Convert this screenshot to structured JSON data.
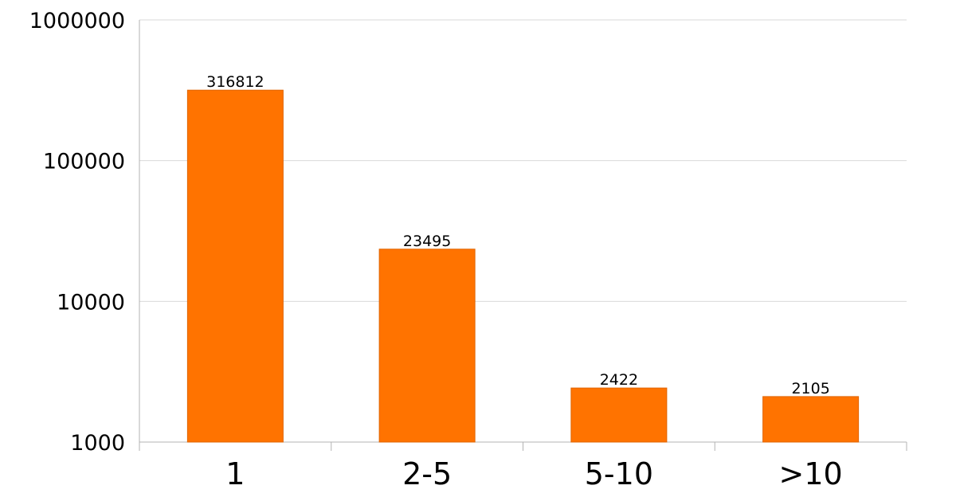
{
  "chart_data": {
    "type": "bar",
    "categories": [
      "1",
      "2-5",
      "5-10",
      ">10"
    ],
    "values": [
      316812,
      23495,
      2422,
      2105
    ],
    "data_labels": [
      "316812",
      "23495",
      "2422",
      "2105"
    ],
    "title": "",
    "xlabel": "",
    "ylabel": "",
    "y_scale": "log",
    "ylim": [
      1000,
      1000000
    ],
    "y_ticks": [
      1000,
      10000,
      100000,
      1000000
    ],
    "y_tick_labels": [
      "1000",
      "10000",
      "100000",
      "1000000"
    ],
    "grid": "horizontal",
    "legend": "none",
    "colors": {
      "bar": "#ff7300",
      "bar_edge": "#e06400",
      "grid": "#d9d9d9",
      "axis": "#b3b3b3"
    }
  }
}
